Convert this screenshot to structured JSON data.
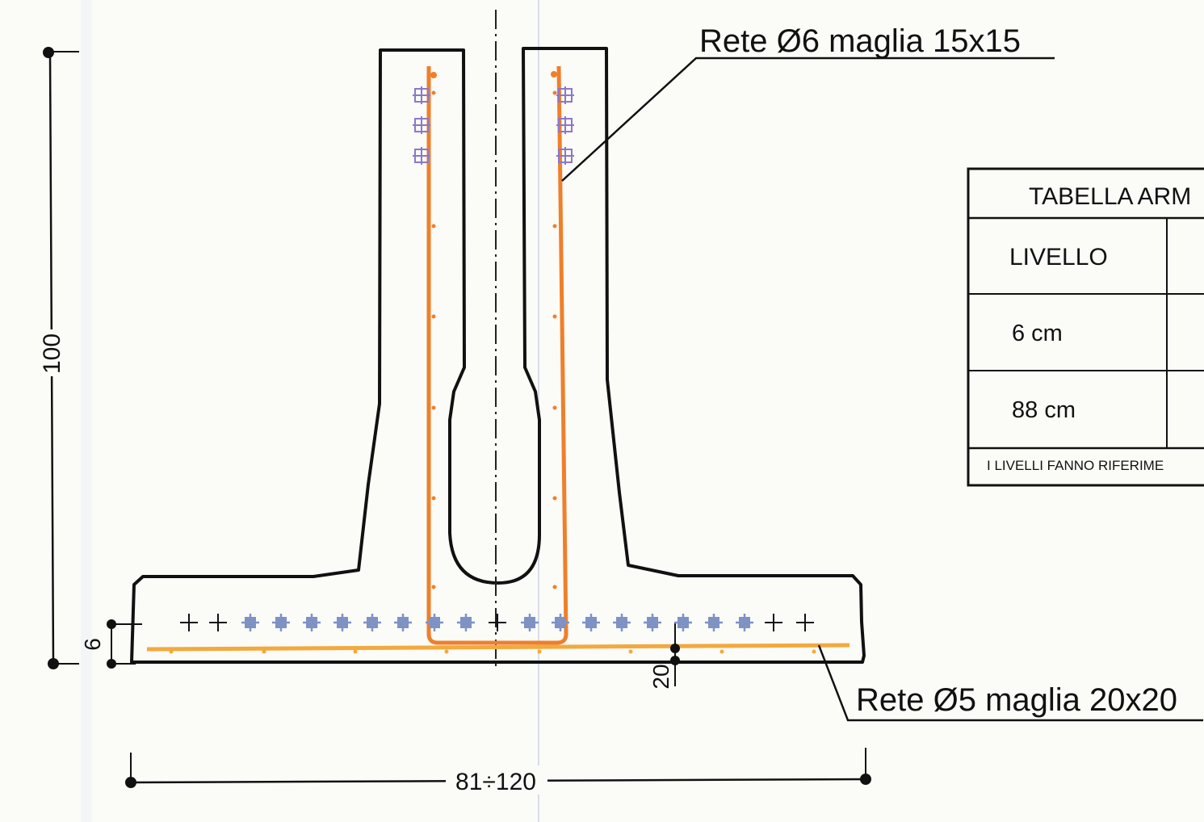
{
  "labels": {
    "top_mesh": "Rete Ø6  maglia 15x15",
    "bottom_mesh": "Rete Ø5  maglia 20x20"
  },
  "dimensions": {
    "height": "100",
    "cover": "6",
    "bottom_cover": "20",
    "width": "81÷120"
  },
  "table": {
    "title": "TABELLA ARM",
    "header": "LIVELLO",
    "rows": [
      "6 cm",
      "88 cm"
    ],
    "note": "I LIVELLI FANNO RIFERIME"
  },
  "colors": {
    "outline": "#111111",
    "rebar": "#ef7f2a",
    "rebar_bar_symbol": "#8c78c8",
    "transverse_bar_symbol": "#7e92c4",
    "mesh_line": "#f3a93c",
    "paper": "#fbfbf8"
  }
}
